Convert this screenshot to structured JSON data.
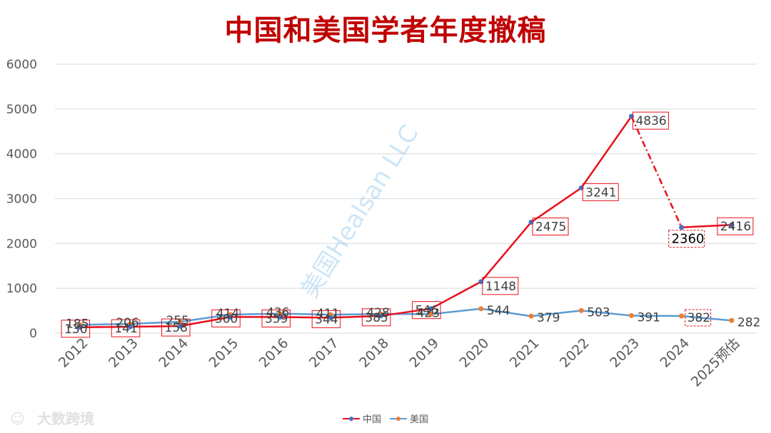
{
  "chart_data": {
    "type": "line",
    "title": "中国和美国学者年度撤稿",
    "categories": [
      "2012",
      "2013",
      "2014",
      "2015",
      "2016",
      "2017",
      "2018",
      "2019",
      "2020",
      "2021",
      "2022",
      "2023",
      "2024",
      "2025预估"
    ],
    "ylim": [
      0,
      6000
    ],
    "yticks": [
      0,
      1000,
      2000,
      3000,
      4000,
      5000,
      6000
    ],
    "grid": true,
    "legend_position": "bottom",
    "series": [
      {
        "name": "中国",
        "color": "#e8101a",
        "values": [
          130,
          141,
          158,
          360,
          359,
          344,
          385,
          546,
          1148,
          2475,
          3241,
          4836,
          2360,
          2416
        ],
        "labels": [
          "130",
          "141",
          "158",
          "360",
          "359",
          "344",
          "385",
          "546",
          "1148",
          "2475",
          "3241",
          "4836",
          "2360",
          "2416"
        ]
      },
      {
        "name": "美国",
        "color": "#5b9bd5",
        "values": [
          185,
          206,
          255,
          414,
          436,
          411,
          428,
          423,
          544,
          379,
          503,
          391,
          382,
          282
        ],
        "labels": [
          "185",
          "206",
          "255",
          "414",
          "436",
          "411",
          "428",
          "423",
          "544",
          "379",
          "503",
          "391",
          "382",
          "282"
        ]
      }
    ],
    "watermark": "美国Healsan LLC",
    "source_logo": "大数跨境"
  }
}
